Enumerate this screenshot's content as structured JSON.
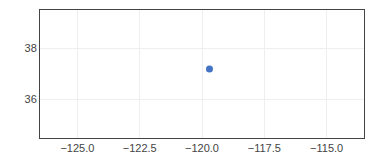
{
  "chart_data": {
    "type": "scatter",
    "x": [
      -119.7
    ],
    "values": [
      37.2
    ],
    "color": "#4472c4",
    "marker": "circle",
    "xlim": [
      -126.5,
      -113.5
    ],
    "ylim": [
      34.5,
      39.5
    ],
    "xticks": [
      {
        "value": -125.0,
        "label": "−125.0"
      },
      {
        "value": -122.5,
        "label": "−122.5"
      },
      {
        "value": -120.0,
        "label": "−120.0"
      },
      {
        "value": -117.5,
        "label": "−117.5"
      },
      {
        "value": -115.0,
        "label": "−115.0"
      }
    ],
    "yticks": [
      36,
      38
    ],
    "grid": true
  }
}
